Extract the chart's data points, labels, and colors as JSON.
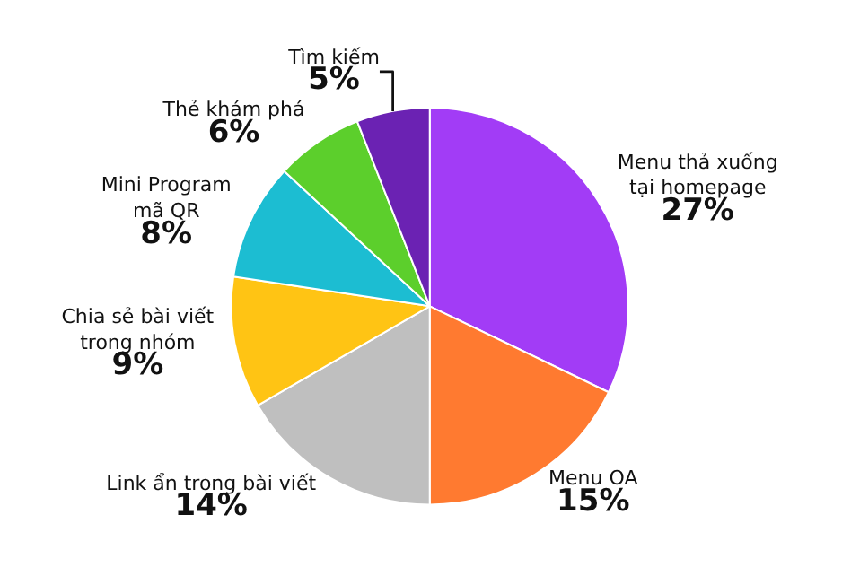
{
  "chart_data": {
    "type": "pie",
    "categories": [
      "Menu thả xuống\ntại homepage",
      "Menu OA",
      "Link ẩn trong bài viết",
      "Chia sẻ bài viết\ntrong nhóm",
      "Mini Program\nmã QR",
      "Thẻ khám phá",
      "Tìm kiếm"
    ],
    "values": [
      27,
      15,
      14,
      9,
      8,
      6,
      5
    ],
    "value_labels": [
      "27%",
      "15%",
      "14%",
      "9%",
      "8%",
      "6%",
      "5%"
    ],
    "colors": [
      "#a23cf6",
      "#ff7a30",
      "#bfbfbf",
      "#ffc414",
      "#1cbdd2",
      "#5ccf2c",
      "#6b22b3"
    ]
  }
}
